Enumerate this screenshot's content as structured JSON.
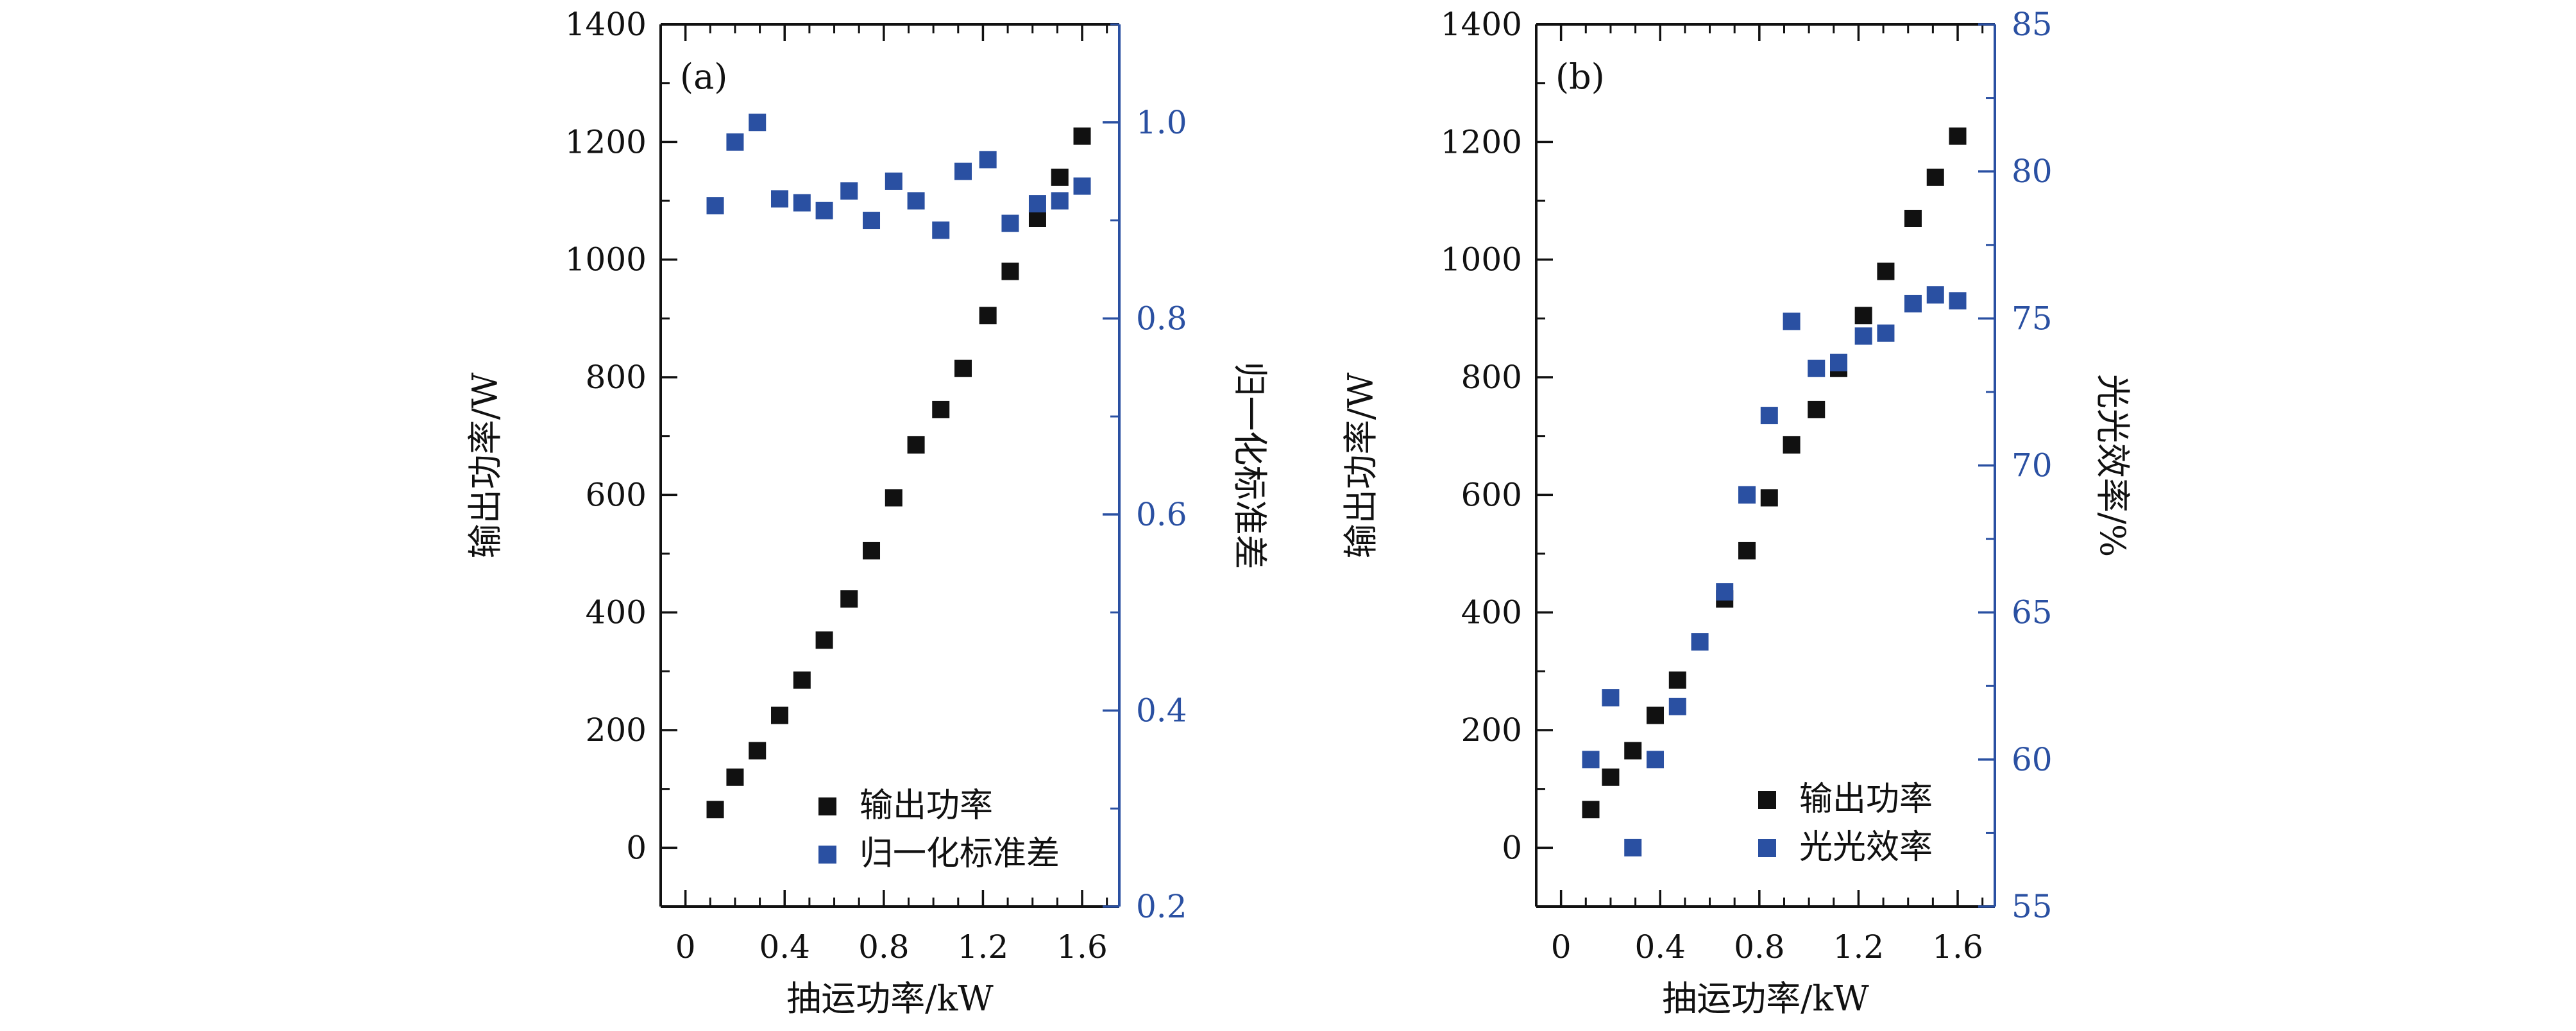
{
  "colors": {
    "black_series": "#111111",
    "blue_series": "#2a50a2",
    "axis_black": "#111111",
    "axis_blue": "#2a50a2"
  },
  "chart_data": [
    {
      "type": "scatter",
      "panel_label": "(a)",
      "xlabel": "抽运功率/kW",
      "ylabel": "输出功率/W",
      "y2label": "归一化标准差",
      "xlim": [
        -0.1,
        1.75
      ],
      "ylim": [
        -100,
        1400
      ],
      "y2lim": [
        0.2,
        1.1
      ],
      "xticks": [
        "0",
        "0.4",
        "0.8",
        "1.2",
        "1.6"
      ],
      "xtick_values": [
        0,
        0.4,
        0.8,
        1.2,
        1.6
      ],
      "yticks": [
        "0",
        "200",
        "400",
        "600",
        "800",
        "1000",
        "1200",
        "1400"
      ],
      "ytick_values": [
        0,
        200,
        400,
        600,
        800,
        1000,
        1200,
        1400
      ],
      "y2ticks": [
        "0.2",
        "0.4",
        "0.6",
        "0.8",
        "1.0"
      ],
      "y2tick_values": [
        0.2,
        0.4,
        0.6,
        0.8,
        1.0
      ],
      "legend_position": "bottom-right",
      "series": [
        {
          "name": "输出功率",
          "axis": "left",
          "color": "#111111",
          "x": [
            0.12,
            0.2,
            0.29,
            0.38,
            0.47,
            0.56,
            0.66,
            0.75,
            0.84,
            0.93,
            1.03,
            1.12,
            1.22,
            1.31,
            1.42,
            1.51,
            1.6
          ],
          "y": [
            65,
            120,
            165,
            225,
            285,
            353,
            423,
            505,
            595,
            685,
            745,
            815,
            905,
            980,
            1070,
            1140,
            1210
          ]
        },
        {
          "name": "归一化标准差",
          "axis": "right",
          "color": "#2a50a2",
          "x": [
            0.12,
            0.2,
            0.29,
            0.38,
            0.47,
            0.56,
            0.66,
            0.75,
            0.84,
            0.93,
            1.03,
            1.12,
            1.22,
            1.31,
            1.42,
            1.51,
            1.6
          ],
          "y": [
            0.915,
            0.98,
            1.0,
            0.922,
            0.918,
            0.91,
            0.93,
            0.9,
            0.94,
            0.92,
            0.89,
            0.95,
            0.962,
            0.897,
            0.917,
            0.92,
            0.935
          ]
        }
      ]
    },
    {
      "type": "scatter",
      "panel_label": "(b)",
      "xlabel": "抽运功率/kW",
      "ylabel": "输出功率/W",
      "y2label": "光光效率/%",
      "xlim": [
        -0.1,
        1.75
      ],
      "ylim": [
        -100,
        1400
      ],
      "y2lim": [
        55,
        85
      ],
      "xticks": [
        "0",
        "0.4",
        "0.8",
        "1.2",
        "1.6"
      ],
      "xtick_values": [
        0,
        0.4,
        0.8,
        1.2,
        1.6
      ],
      "yticks": [
        "0",
        "200",
        "400",
        "600",
        "800",
        "1000",
        "1200",
        "1400"
      ],
      "ytick_values": [
        0,
        200,
        400,
        600,
        800,
        1000,
        1200,
        1400
      ],
      "y2ticks": [
        "55",
        "60",
        "65",
        "70",
        "75",
        "80",
        "85"
      ],
      "y2tick_values": [
        55,
        60,
        65,
        70,
        75,
        80,
        85
      ],
      "legend_position": "bottom-right",
      "series": [
        {
          "name": "输出功率",
          "axis": "left",
          "color": "#111111",
          "x": [
            0.12,
            0.2,
            0.29,
            0.38,
            0.47,
            0.66,
            0.75,
            0.84,
            0.93,
            1.03,
            1.12,
            1.22,
            1.31,
            1.42,
            1.51,
            1.6
          ],
          "y": [
            65,
            120,
            165,
            225,
            285,
            423,
            505,
            595,
            685,
            745,
            815,
            905,
            980,
            1070,
            1140,
            1210
          ]
        },
        {
          "name": "光光效率",
          "axis": "right",
          "color": "#2a50a2",
          "x": [
            0.12,
            0.2,
            0.29,
            0.38,
            0.47,
            0.56,
            0.66,
            0.75,
            0.84,
            0.93,
            1.03,
            1.12,
            1.22,
            1.31,
            1.42,
            1.51,
            1.6
          ],
          "y": [
            60.0,
            62.1,
            57.0,
            60.0,
            61.8,
            64.0,
            65.7,
            69.0,
            71.7,
            74.9,
            73.3,
            73.5,
            74.4,
            74.5,
            75.5,
            75.8,
            75.6
          ]
        }
      ]
    }
  ]
}
